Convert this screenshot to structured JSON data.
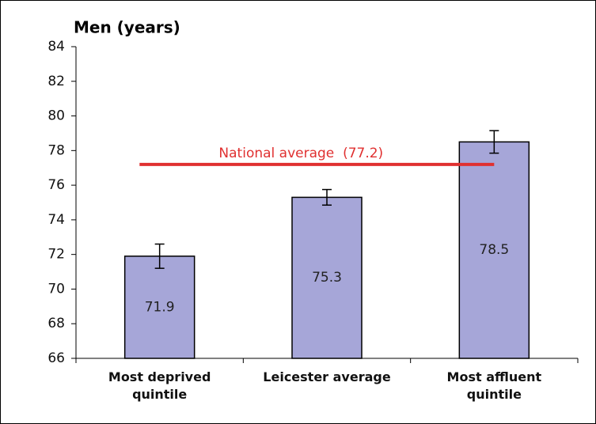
{
  "chart_data": {
    "type": "bar",
    "title": "Men (years)",
    "categories": [
      "Most deprived quintile",
      "Leicester average",
      "Most affluent quintile"
    ],
    "values": [
      71.9,
      75.3,
      78.5
    ],
    "errors": [
      0.7,
      0.45,
      0.65
    ],
    "color": "#a6a6d8",
    "reference_line": {
      "label": "National average  (77.2)",
      "value": 77.2,
      "color": "#e03030"
    },
    "ylim": [
      66,
      84
    ],
    "yticks": [
      66,
      68,
      70,
      72,
      74,
      76,
      78,
      80,
      82,
      84
    ]
  }
}
